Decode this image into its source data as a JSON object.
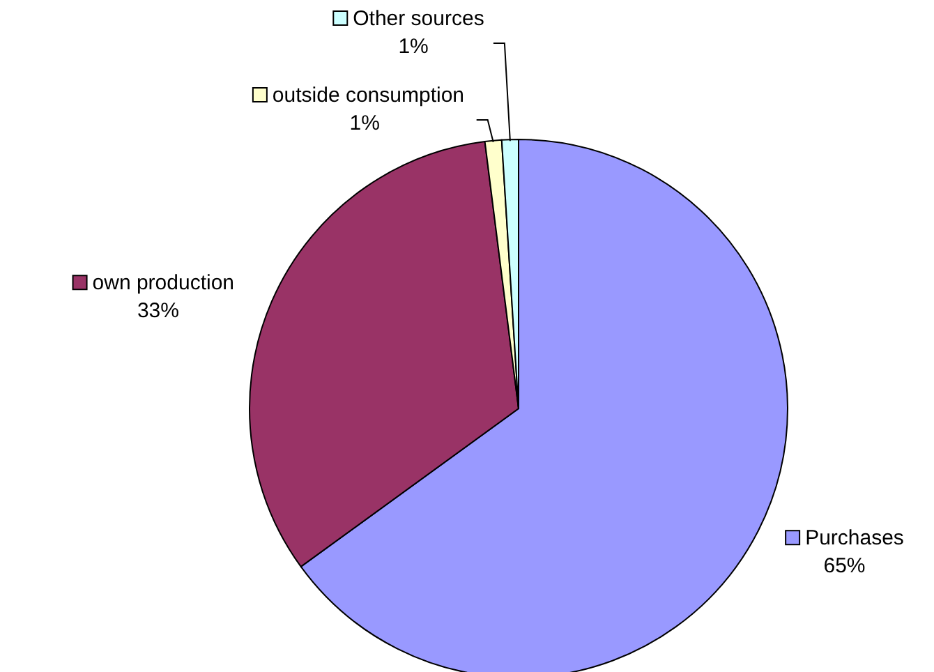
{
  "chart_data": {
    "type": "pie",
    "categories": [
      "Purchases",
      "own production",
      "outside consumption",
      "Other sources"
    ],
    "values": [
      65,
      33,
      1,
      1
    ],
    "value_labels": [
      "65%",
      "33%",
      "1%",
      "1%"
    ],
    "colors": [
      "#9999ff",
      "#993366",
      "#ffffcc",
      "#ccffff"
    ],
    "legend": "top left"
  }
}
